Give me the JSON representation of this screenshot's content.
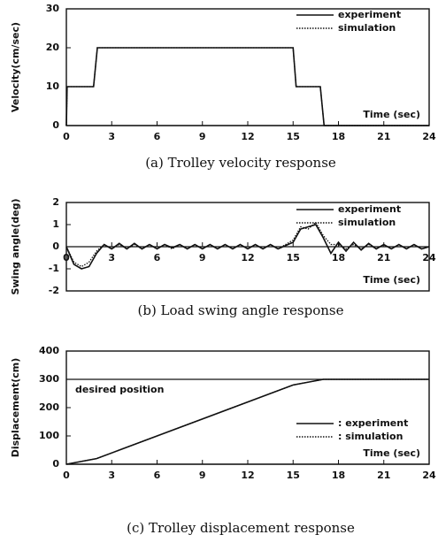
{
  "chart_data": [
    {
      "type": "line",
      "caption": "(a) Trolley velocity response",
      "ylabel": "Velocity(cm/sec)",
      "xlabel": "Time (sec)",
      "x": [
        0,
        0.05,
        1.8,
        2.05,
        15,
        15.2,
        16.8,
        17.05,
        24
      ],
      "series": [
        {
          "name": "experiment",
          "color": "#111111",
          "style": "solid",
          "values": [
            0,
            10,
            10,
            20,
            20,
            10,
            10,
            0,
            0
          ]
        },
        {
          "name": "simulation",
          "color": "#111111",
          "style": "dotted",
          "values": [
            0,
            10,
            10,
            20,
            20,
            10,
            10,
            0,
            0
          ]
        }
      ],
      "xlim": [
        0,
        24
      ],
      "xticks": [
        0,
        3,
        6,
        9,
        12,
        15,
        18,
        21,
        24
      ],
      "ylim": [
        0,
        30
      ],
      "yticks": [
        0,
        10,
        20,
        30
      ]
    },
    {
      "type": "line",
      "caption": "(b) Load swing angle response",
      "ylabel": "Swing angle(deg)",
      "xlabel": "Time (sec)",
      "x": [
        0,
        0.5,
        1,
        1.5,
        2,
        2.5,
        3,
        3.5,
        4,
        4.5,
        5,
        5.5,
        6,
        6.5,
        7,
        7.5,
        8,
        8.5,
        9,
        9.5,
        10,
        10.5,
        11,
        11.5,
        12,
        12.5,
        13,
        13.5,
        14,
        14.5,
        15,
        15.5,
        16,
        16.5,
        17,
        17.5,
        18,
        18.5,
        19,
        19.5,
        20,
        20.5,
        21,
        21.5,
        22,
        22.5,
        23,
        23.5,
        24
      ],
      "series": [
        {
          "name": "experiment",
          "color": "#111111",
          "style": "solid",
          "values": [
            0,
            -0.8,
            -1,
            -0.9,
            -0.3,
            0.1,
            -0.1,
            0.15,
            -0.1,
            0.15,
            -0.1,
            0.1,
            -0.1,
            0.1,
            -0.05,
            0.1,
            -0.1,
            0.1,
            -0.1,
            0.1,
            -0.1,
            0.1,
            -0.1,
            0.1,
            -0.1,
            0.1,
            -0.1,
            0.1,
            -0.1,
            0.05,
            0.2,
            0.8,
            0.9,
            1,
            0.4,
            -0.3,
            0.2,
            -0.2,
            0.2,
            -0.15,
            0.15,
            -0.1,
            0.1,
            -0.1,
            0.1,
            -0.1,
            0.1,
            -0.1,
            0
          ]
        },
        {
          "name": "simulation",
          "color": "#111111",
          "style": "dotted",
          "values": [
            0,
            -0.7,
            -0.9,
            -0.7,
            -0.2,
            0.1,
            -0.1,
            0.1,
            -0.1,
            0.1,
            -0.1,
            0.1,
            -0.1,
            0.1,
            -0.1,
            0.1,
            -0.1,
            0.1,
            -0.1,
            0.1,
            -0.1,
            0.1,
            -0.1,
            0.1,
            -0.1,
            0.1,
            -0.1,
            0.1,
            -0.1,
            0.1,
            0.3,
            0.9,
            0.8,
            1.1,
            0.5,
            0.1,
            0.1,
            -0.1,
            0.1,
            -0.1,
            0.1,
            -0.1,
            0.1,
            -0.1,
            0.1,
            -0.1,
            0.1,
            -0.1,
            0
          ]
        }
      ],
      "xlim": [
        0,
        24
      ],
      "xticks": [
        0,
        3,
        6,
        9,
        12,
        15,
        18,
        21,
        24
      ],
      "ylim": [
        -2,
        2
      ],
      "yticks": [
        -2,
        -1,
        0,
        1,
        2
      ]
    },
    {
      "type": "line",
      "caption": "(c) Trolley displacement response",
      "ylabel": "Displacement(cm)",
      "xlabel": "Time (sec)",
      "x": [
        0,
        2,
        15,
        17,
        24
      ],
      "series": [
        {
          "name": ": experiment",
          "color": "#111111",
          "style": "solid",
          "values": [
            0,
            20,
            280,
            300,
            300
          ]
        },
        {
          "name": ": simulation",
          "color": "#111111",
          "style": "dotted",
          "values": [
            0,
            20,
            280,
            300,
            300
          ]
        }
      ],
      "reference_line": {
        "value": 300,
        "label": "desired position"
      },
      "xlim": [
        0,
        24
      ],
      "xticks": [
        0,
        3,
        6,
        9,
        12,
        15,
        18,
        21,
        24
      ],
      "ylim": [
        0,
        400
      ],
      "yticks": [
        0,
        100,
        200,
        300,
        400
      ]
    }
  ]
}
